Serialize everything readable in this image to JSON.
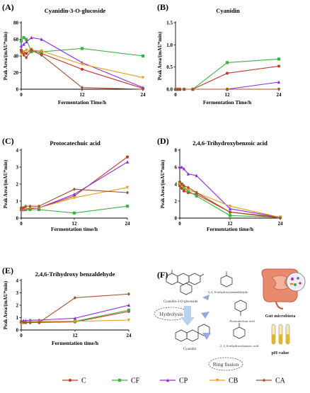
{
  "colors": {
    "C": "#c0392b",
    "CF": "#3cb043",
    "CP": "#8a2be2",
    "CB": "#e0a020",
    "CA": "#a0522d"
  },
  "chart_data": [
    {
      "id": "A",
      "panel_label": "(A)",
      "type": "line",
      "title": "Cyanidin-3-O-glucoside",
      "xlabel": "Fermentation Time/h",
      "ylabel": "Peak Area/(mAU*min)",
      "x": [
        0,
        0.5,
        1,
        2,
        4,
        12,
        24
      ],
      "xlim": [
        0,
        24
      ],
      "xticks": [
        "0",
        "12",
        "24"
      ],
      "ylim": [
        0,
        80
      ],
      "yticks": [
        "0",
        "20",
        "40",
        "60",
        "80"
      ],
      "series": [
        {
          "name": "C",
          "values": [
            47,
            44,
            43,
            48,
            43,
            24,
            1
          ]
        },
        {
          "name": "CF",
          "values": [
            58,
            62,
            60,
            45,
            45,
            49,
            40
          ]
        },
        {
          "name": "CP",
          "values": [
            52,
            54,
            57,
            62,
            60,
            32,
            2
          ]
        },
        {
          "name": "CB",
          "values": [
            42,
            45,
            47,
            47,
            46,
            30,
            14
          ]
        },
        {
          "name": "CA",
          "values": [
            45,
            41,
            38,
            47,
            41,
            2,
            0
          ]
        }
      ]
    },
    {
      "id": "B",
      "panel_label": "(B)",
      "type": "line",
      "title": "Cyanidin",
      "xlabel": "Fermentation Time/h",
      "ylabel": "Peak Area/(mAU*min)",
      "x": [
        0,
        0.5,
        1,
        2,
        4,
        12,
        24
      ],
      "xlim": [
        0,
        24
      ],
      "xticks": [
        "0",
        "12",
        "24"
      ],
      "ylim": [
        0,
        1.5
      ],
      "yticks": [
        "0.0",
        "0.5",
        "1.0",
        "1.5"
      ],
      "series": [
        {
          "name": "C",
          "values": [
            0,
            0,
            0,
            0,
            0,
            0.36,
            0.52
          ]
        },
        {
          "name": "CF",
          "values": [
            0,
            0,
            0,
            0,
            0,
            0.6,
            0.68
          ]
        },
        {
          "name": "CP",
          "values": [
            0,
            0,
            0,
            0,
            0,
            0,
            0.16
          ]
        },
        {
          "name": "CB",
          "values": [
            0,
            0,
            0,
            0,
            0,
            0,
            0
          ]
        },
        {
          "name": "CA",
          "values": [
            0,
            0,
            0,
            0,
            0,
            0,
            0
          ]
        }
      ]
    },
    {
      "id": "C",
      "panel_label": "(C)",
      "type": "line",
      "title": "Protocatechuic acid",
      "xlabel": "Fermentation time/h",
      "ylabel": "Peak Area/(mAU*min)",
      "x": [
        0,
        0.5,
        1,
        2,
        4,
        12,
        24
      ],
      "xlim": [
        0,
        24
      ],
      "xticks": [
        "0",
        "12",
        "24"
      ],
      "ylim": [
        0,
        4
      ],
      "yticks": [
        "0",
        "1",
        "2",
        "3",
        "4"
      ],
      "series": [
        {
          "name": "C",
          "values": [
            0.6,
            0.6,
            0.55,
            0.55,
            0.6,
            1.3,
            3.6
          ]
        },
        {
          "name": "CF",
          "values": [
            0.55,
            0.6,
            0.5,
            0.5,
            0.5,
            0.3,
            0.7
          ]
        },
        {
          "name": "CP",
          "values": [
            0.5,
            0.5,
            0.55,
            0.6,
            0.6,
            1.4,
            3.3
          ]
        },
        {
          "name": "CB",
          "values": [
            0.5,
            0.5,
            0.55,
            0.6,
            0.6,
            1.2,
            1.8
          ]
        },
        {
          "name": "CA",
          "values": [
            0.55,
            0.6,
            0.7,
            0.7,
            0.7,
            1.7,
            1.5
          ]
        }
      ]
    },
    {
      "id": "D",
      "panel_label": "(D)",
      "type": "line",
      "title": "2,4,6-Trihydroxybenzoic acid",
      "xlabel": "Fermentation time/h",
      "ylabel": "Peak Area/(mAU*min)",
      "x": [
        0,
        0.5,
        1,
        2,
        4,
        12,
        24
      ],
      "xlim": [
        0,
        24
      ],
      "xticks": [
        "0",
        "12",
        "24"
      ],
      "ylim": [
        0,
        8
      ],
      "yticks": [
        "0",
        "2",
        "4",
        "6",
        "8"
      ],
      "series": [
        {
          "name": "C",
          "values": [
            3.8,
            3.5,
            3.2,
            3.0,
            2.8,
            0.7,
            0.1
          ]
        },
        {
          "name": "CF",
          "values": [
            4.2,
            4.0,
            3.5,
            3.2,
            2.6,
            0.3,
            0.1
          ]
        },
        {
          "name": "CP",
          "values": [
            6.0,
            6.0,
            5.8,
            5.2,
            5.0,
            1.1,
            0.1
          ]
        },
        {
          "name": "CB",
          "values": [
            4.0,
            3.8,
            3.6,
            3.3,
            3.0,
            1.4,
            0.1
          ]
        },
        {
          "name": "CA",
          "values": [
            4.3,
            4.0,
            3.8,
            3.6,
            3.0,
            0.7,
            0
          ]
        }
      ]
    },
    {
      "id": "E",
      "panel_label": "(E)",
      "type": "line",
      "title": "2,4,6-Trihydroxy benzaldehyde",
      "xlabel": "Fermentation time/h",
      "ylabel": "Peak Area/(mAU*min)",
      "x": [
        0,
        0.5,
        1,
        2,
        4,
        12,
        24
      ],
      "xlim": [
        0,
        24
      ],
      "xticks": [
        "0",
        "12",
        "24"
      ],
      "ylim": [
        0,
        4
      ],
      "yticks": [
        "0",
        "1",
        "2",
        "3",
        "4"
      ],
      "series": [
        {
          "name": "C",
          "values": [
            0.6,
            0.6,
            0.6,
            0.6,
            0.6,
            0.65,
            1.5
          ]
        },
        {
          "name": "CF",
          "values": [
            0.65,
            0.65,
            0.65,
            0.7,
            0.7,
            0.7,
            1.6
          ]
        },
        {
          "name": "CP",
          "values": [
            0.7,
            0.75,
            0.75,
            0.8,
            0.8,
            0.95,
            2.0
          ]
        },
        {
          "name": "CB",
          "values": [
            0.6,
            0.6,
            0.6,
            0.65,
            0.65,
            0.7,
            0.8
          ]
        },
        {
          "name": "CA",
          "values": [
            0.7,
            0.65,
            0.6,
            0.6,
            0.6,
            2.6,
            2.9
          ]
        }
      ]
    }
  ],
  "legend": [
    "C",
    "CF",
    "CP",
    "CB",
    "CA"
  ],
  "diagram": {
    "panel_label": "(F)",
    "label_c3g": "Cyanidin-3-O-glucoside",
    "label_hydrolysis": "Hydrolysis",
    "label_cyanidin": "Cyanidin",
    "label_ring_fission": "Ring fission",
    "label_aldehyde": "2, 4, 6-trihydroxybenzaldehyde",
    "label_pca": "Protocatechuic acid",
    "label_tba": "2, 4, 6-trihydroxybenzoic acid",
    "label_gut": "Gut microbiota",
    "label_ph": "pH value"
  }
}
